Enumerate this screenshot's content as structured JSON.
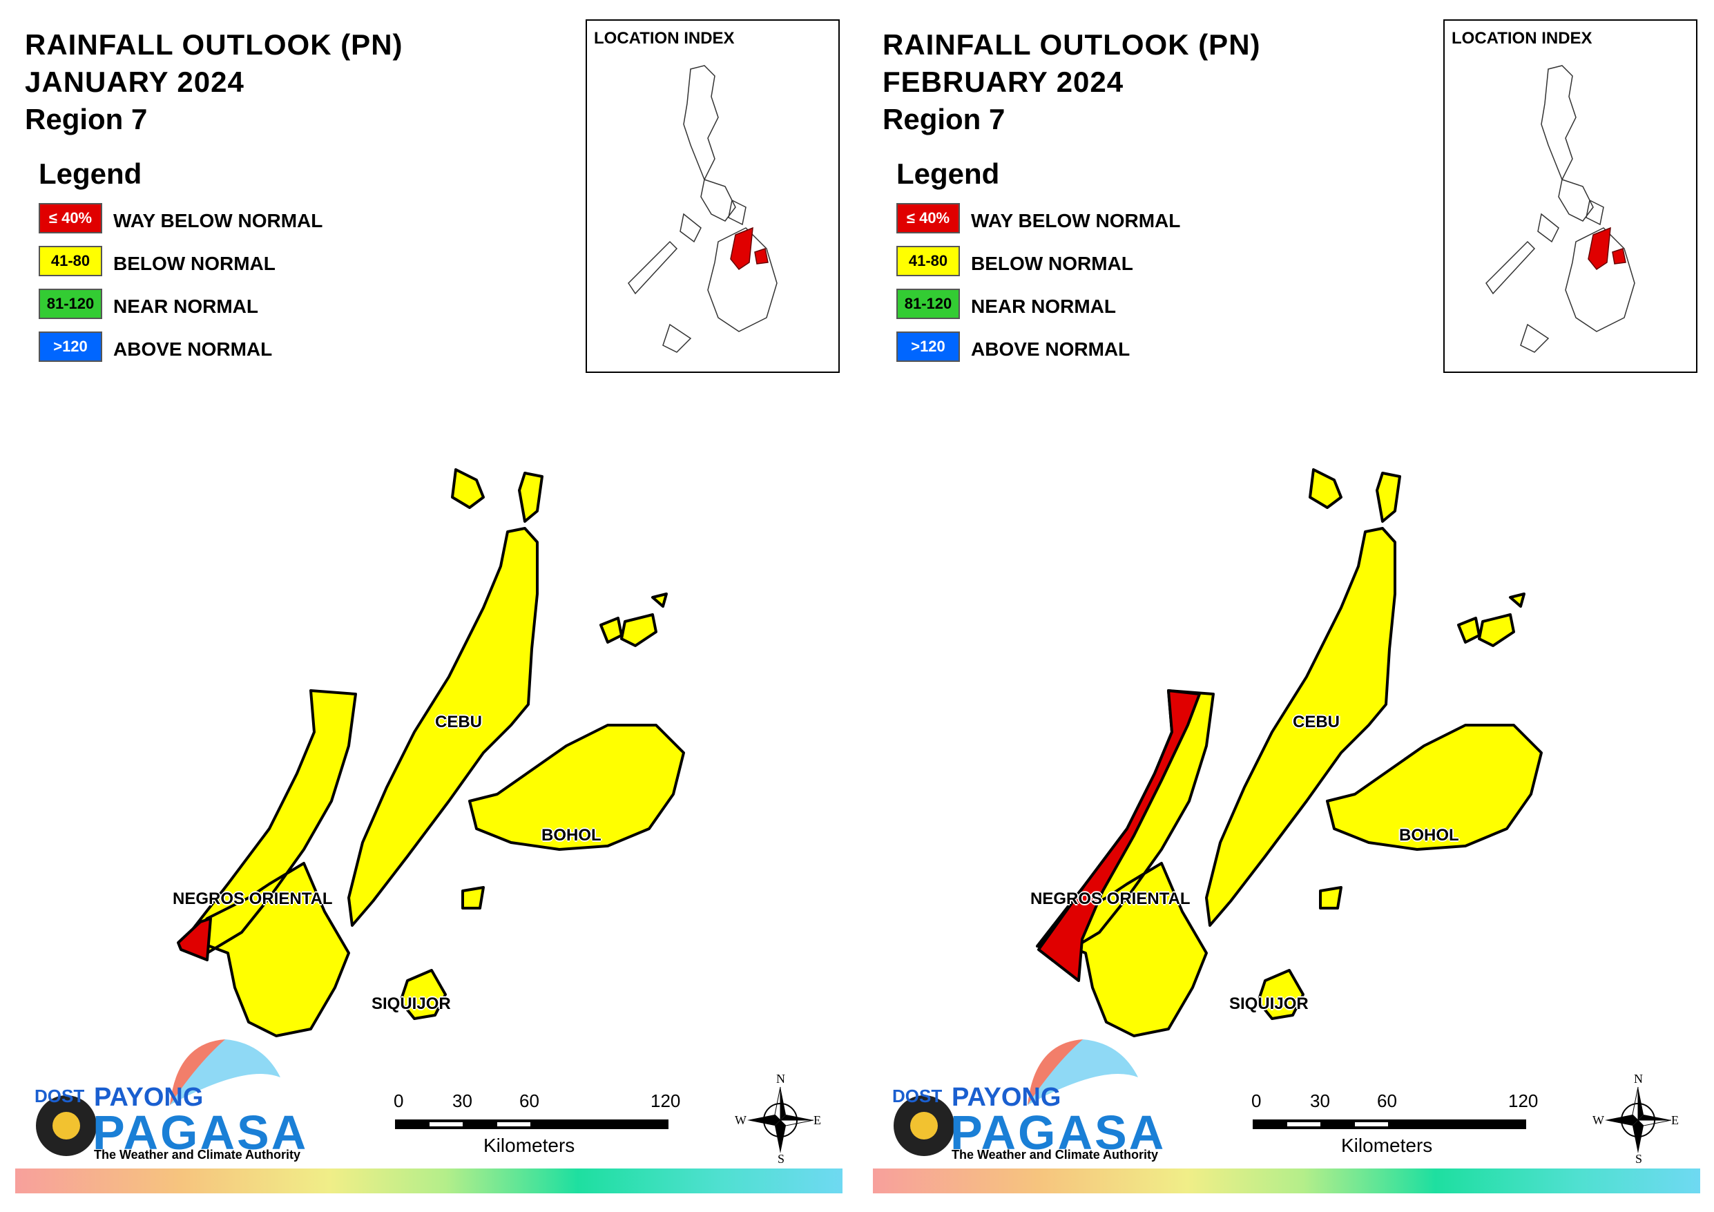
{
  "panels": [
    {
      "title_line1": "RAINFALL OUTLOOK (PN)",
      "title_line2": "JANUARY 2024",
      "title_line3": "Region 7",
      "legend_title": "Legend",
      "legend": [
        {
          "range": "≤ 40%",
          "label": "WAY BELOW NORMAL",
          "color": "#e00000"
        },
        {
          "range": "41-80",
          "label": "BELOW NORMAL",
          "color": "#ffff00"
        },
        {
          "range": "81-120",
          "label": "NEAR NORMAL",
          "color": "#33cc33"
        },
        {
          "range": ">120",
          "label": "ABOVE NORMAL",
          "color": "#0066ff"
        }
      ],
      "location_index_title": "LOCATION INDEX",
      "provinces": [
        {
          "name": "CEBU",
          "category": "BELOW NORMAL"
        },
        {
          "name": "BOHOL",
          "category": "BELOW NORMAL"
        },
        {
          "name": "NEGROS ORIENTAL",
          "category": "BELOW NORMAL"
        },
        {
          "name": "SIQUIJOR",
          "category": "BELOW NORMAL"
        }
      ],
      "scale_ticks": [
        "0",
        "30",
        "60",
        "120"
      ],
      "scale_unit": "Kilometers",
      "compass": {
        "n": "N",
        "e": "E",
        "s": "S",
        "w": "W"
      },
      "logo": {
        "dost": "DOST",
        "payong": "PAYONG",
        "pagasa": "PAGASA",
        "tagline": "The Weather and Climate Authority"
      }
    },
    {
      "title_line1": "RAINFALL OUTLOOK (PN)",
      "title_line2": "FEBRUARY 2024",
      "title_line3": "Region 7",
      "legend_title": "Legend",
      "legend": [
        {
          "range": "≤ 40%",
          "label": "WAY BELOW NORMAL",
          "color": "#e00000"
        },
        {
          "range": "41-80",
          "label": "BELOW NORMAL",
          "color": "#ffff00"
        },
        {
          "range": "81-120",
          "label": "NEAR NORMAL",
          "color": "#33cc33"
        },
        {
          "range": ">120",
          "label": "ABOVE NORMAL",
          "color": "#0066ff"
        }
      ],
      "location_index_title": "LOCATION INDEX",
      "provinces": [
        {
          "name": "CEBU",
          "category": "BELOW NORMAL"
        },
        {
          "name": "BOHOL",
          "category": "BELOW NORMAL"
        },
        {
          "name": "NEGROS ORIENTAL",
          "category": "BELOW NORMAL"
        },
        {
          "name": "SIQUIJOR",
          "category": "BELOW NORMAL"
        }
      ],
      "scale_ticks": [
        "0",
        "30",
        "60",
        "120"
      ],
      "scale_unit": "Kilometers",
      "compass": {
        "n": "N",
        "e": "E",
        "s": "S",
        "w": "W"
      },
      "logo": {
        "dost": "DOST",
        "payong": "PAYONG",
        "pagasa": "PAGASA",
        "tagline": "The Weather and Climate Authority"
      }
    }
  ]
}
